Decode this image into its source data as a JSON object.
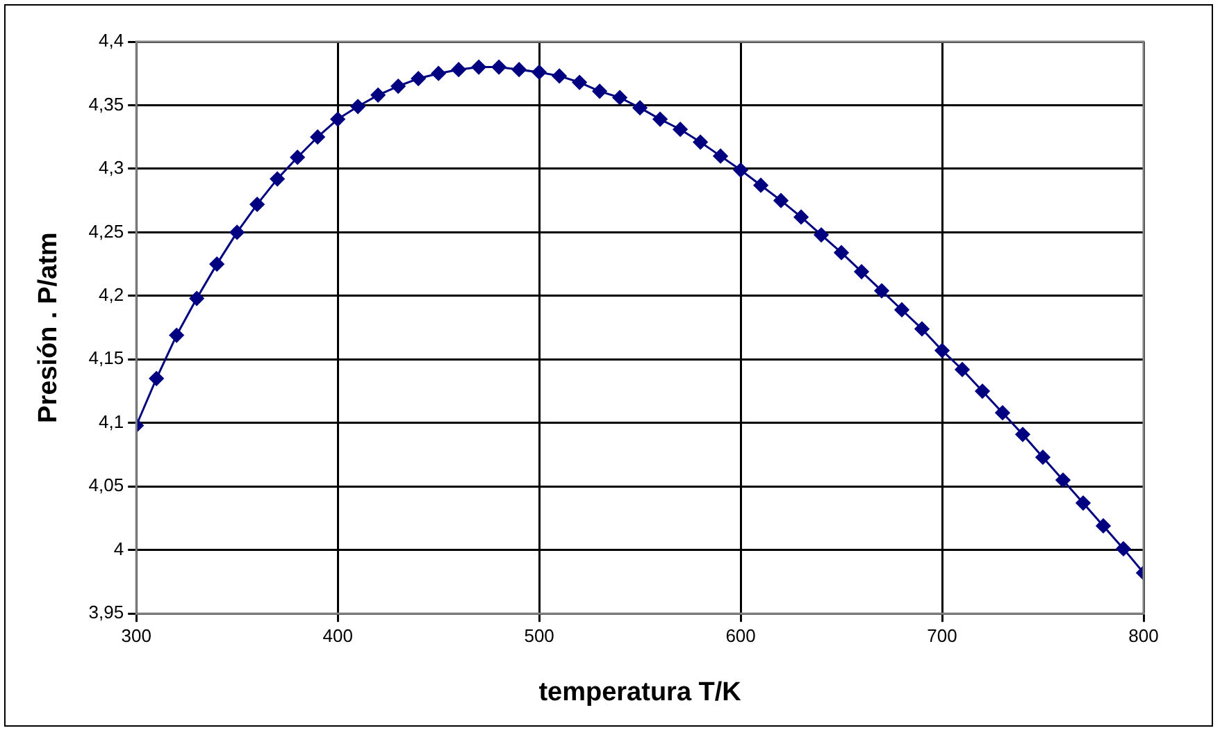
{
  "chart_data": {
    "type": "line",
    "xlabel": "temperatura T/K",
    "ylabel": "Presión . P/atm",
    "x": [
      300,
      310,
      320,
      330,
      340,
      350,
      360,
      370,
      380,
      390,
      400,
      410,
      420,
      430,
      440,
      450,
      460,
      470,
      480,
      490,
      500,
      510,
      520,
      530,
      540,
      550,
      560,
      570,
      580,
      590,
      600,
      610,
      620,
      630,
      640,
      650,
      660,
      670,
      680,
      690,
      700,
      710,
      720,
      730,
      740,
      750,
      760,
      770,
      780,
      790,
      800
    ],
    "series": [
      {
        "color": "#000080",
        "values": [
          4.098,
          4.135,
          4.169,
          4.198,
          4.225,
          4.25,
          4.272,
          4.292,
          4.309,
          4.325,
          4.339,
          4.349,
          4.358,
          4.365,
          4.371,
          4.375,
          4.378,
          4.38,
          4.38,
          4.378,
          4.376,
          4.373,
          4.368,
          4.361,
          4.356,
          4.348,
          4.339,
          4.331,
          4.321,
          4.31,
          4.299,
          4.287,
          4.275,
          4.262,
          4.248,
          4.234,
          4.219,
          4.204,
          4.189,
          4.174,
          4.157,
          4.142,
          4.125,
          4.108,
          4.091,
          4.073,
          4.055,
          4.037,
          4.019,
          4.001,
          3.982
        ]
      }
    ],
    "xlim": [
      300,
      800
    ],
    "xticks": [
      300,
      400,
      500,
      600,
      700,
      800
    ],
    "ylim": [
      3.95,
      4.4
    ],
    "yticks": [
      {
        "value": 3.95,
        "label": "3,95"
      },
      {
        "value": 4,
        "label": "4"
      },
      {
        "value": 4.05,
        "label": "4,05"
      },
      {
        "value": 4.1,
        "label": "4,1"
      },
      {
        "value": 4.15,
        "label": "4,15"
      },
      {
        "value": 4.2,
        "label": "4,2"
      },
      {
        "value": 4.25,
        "label": "4,25"
      },
      {
        "value": 4.3,
        "label": "4,3"
      },
      {
        "value": 4.35,
        "label": "4,35"
      },
      {
        "value": 4.4,
        "label": "4,4"
      }
    ],
    "grid": true,
    "legend": false,
    "marker": "diamond",
    "line_style": "solid"
  }
}
